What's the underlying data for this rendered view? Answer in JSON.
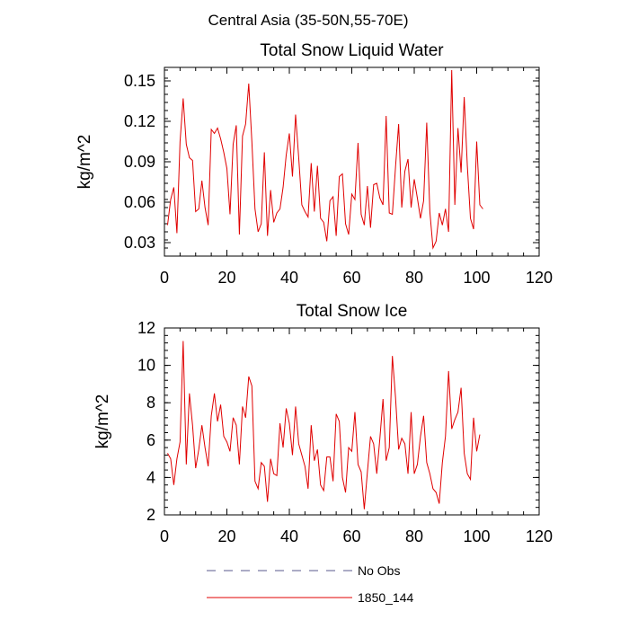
{
  "figure_title": "Central Asia (35-50N,55-70E)",
  "colors": {
    "model": "#e00000",
    "obs": "#5a5a8c",
    "axis": "#000000"
  },
  "legend": {
    "obs_label": "No Obs",
    "model_label": "1850_144"
  },
  "chart_data": [
    {
      "type": "line",
      "title": "Total Snow Liquid Water",
      "xlabel": "",
      "ylabel": "kg/m^2",
      "xlim": [
        0,
        120
      ],
      "ylim": [
        0.02,
        0.16
      ],
      "xticks": [
        0,
        20,
        40,
        60,
        80,
        100,
        120
      ],
      "xtick_labels": [
        "0",
        "20",
        "40",
        "60",
        "80",
        "100",
        "120"
      ],
      "yticks": [
        0.03,
        0.06,
        0.09,
        0.12,
        0.15
      ],
      "ytick_labels": [
        "0.03",
        "0.06",
        "0.09",
        "0.12",
        "0.15"
      ],
      "grid": false,
      "x_start": 1,
      "series": [
        {
          "name": "1850_144",
          "values": [
            0.043,
            0.062,
            0.071,
            0.037,
            0.105,
            0.137,
            0.103,
            0.093,
            0.091,
            0.053,
            0.055,
            0.076,
            0.056,
            0.043,
            0.114,
            0.111,
            0.115,
            0.107,
            0.097,
            0.085,
            0.051,
            0.103,
            0.117,
            0.036,
            0.109,
            0.118,
            0.148,
            0.105,
            0.055,
            0.038,
            0.044,
            0.097,
            0.035,
            0.069,
            0.045,
            0.052,
            0.055,
            0.071,
            0.095,
            0.111,
            0.079,
            0.125,
            0.093,
            0.058,
            0.053,
            0.049,
            0.089,
            0.053,
            0.087,
            0.048,
            0.045,
            0.031,
            0.061,
            0.064,
            0.035,
            0.079,
            0.081,
            0.044,
            0.036,
            0.066,
            0.062,
            0.104,
            0.051,
            0.043,
            0.072,
            0.041,
            0.073,
            0.074,
            0.063,
            0.058,
            0.124,
            0.052,
            0.051,
            0.086,
            0.118,
            0.056,
            0.083,
            0.092,
            0.056,
            0.077,
            0.063,
            0.048,
            0.061,
            0.119,
            0.053,
            0.026,
            0.031,
            0.052,
            0.043,
            0.055,
            0.038,
            0.158,
            0.058,
            0.115,
            0.082,
            0.138,
            0.087,
            0.048,
            0.04,
            0.105,
            0.058,
            0.055
          ]
        }
      ]
    },
    {
      "type": "line",
      "title": "Total Snow Ice",
      "xlabel": "",
      "ylabel": "kg/m^2",
      "xlim": [
        0,
        120
      ],
      "ylim": [
        2,
        12
      ],
      "xticks": [
        0,
        20,
        40,
        60,
        80,
        100,
        120
      ],
      "xtick_labels": [
        "0",
        "20",
        "40",
        "60",
        "80",
        "100",
        "120"
      ],
      "yticks": [
        2,
        4,
        6,
        8,
        10,
        12
      ],
      "ytick_labels": [
        "2",
        "4",
        "6",
        "8",
        "10",
        "12"
      ],
      "grid": false,
      "x_start": 1,
      "series": [
        {
          "name": "1850_144",
          "values": [
            5.3,
            5.0,
            3.6,
            5.0,
            5.9,
            11.3,
            4.7,
            8.5,
            6.8,
            4.5,
            5.5,
            6.8,
            5.6,
            4.6,
            7.3,
            8.5,
            7.0,
            7.9,
            6.2,
            5.9,
            5.4,
            7.2,
            6.8,
            4.7,
            7.8,
            7.2,
            9.4,
            8.9,
            3.8,
            3.4,
            4.8,
            4.6,
            2.7,
            5.0,
            4.2,
            4.1,
            6.9,
            5.6,
            7.7,
            6.9,
            5.2,
            7.8,
            5.8,
            5.2,
            4.6,
            3.4,
            6.8,
            4.9,
            5.5,
            3.6,
            3.3,
            5.1,
            5.1,
            3.8,
            7.4,
            7.0,
            4.0,
            3.2,
            5.6,
            5.4,
            7.5,
            4.7,
            4.3,
            2.3,
            4.3,
            6.2,
            5.8,
            4.2,
            6.1,
            8.2,
            4.9,
            5.6,
            10.5,
            8.3,
            5.5,
            6.1,
            5.8,
            4.2,
            7.5,
            4.2,
            4.7,
            6.2,
            7.3,
            4.8,
            4.2,
            3.4,
            3.2,
            2.6,
            4.8,
            6.2,
            9.7,
            6.6,
            7.1,
            7.5,
            8.8,
            5.3,
            4.2,
            3.9,
            7.2,
            5.4,
            6.3
          ]
        }
      ]
    }
  ]
}
